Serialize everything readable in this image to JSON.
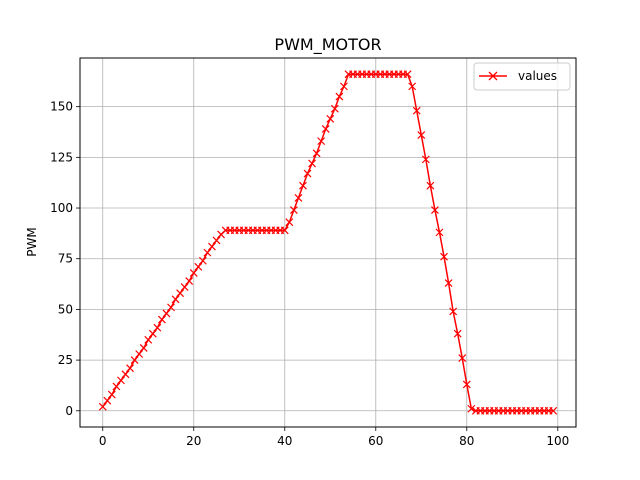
{
  "chart_data": {
    "type": "line",
    "title": "PWM_MOTOR",
    "xlabel": "",
    "ylabel": "PWM",
    "xlim": [
      -5,
      104
    ],
    "ylim": [
      -8,
      174
    ],
    "xticks": [
      0,
      20,
      40,
      60,
      80,
      100
    ],
    "yticks": [
      0,
      25,
      50,
      75,
      100,
      125,
      150
    ],
    "grid": true,
    "legend_position": "top-right",
    "series": [
      {
        "name": "values",
        "color": "#ff0000",
        "marker": "x",
        "x": [
          0,
          1,
          2,
          3,
          4,
          5,
          6,
          7,
          8,
          9,
          10,
          11,
          12,
          13,
          14,
          15,
          16,
          17,
          18,
          19,
          20,
          21,
          22,
          23,
          24,
          25,
          26,
          27,
          28,
          29,
          30,
          31,
          32,
          33,
          34,
          35,
          36,
          37,
          38,
          39,
          40,
          41,
          42,
          43,
          44,
          45,
          46,
          47,
          48,
          49,
          50,
          51,
          52,
          53,
          54,
          55,
          56,
          57,
          58,
          59,
          60,
          61,
          62,
          63,
          64,
          65,
          66,
          67,
          68,
          69,
          70,
          71,
          72,
          73,
          74,
          75,
          76,
          77,
          78,
          79,
          80,
          81,
          82,
          83,
          84,
          85,
          86,
          87,
          88,
          89,
          90,
          91,
          92,
          93,
          94,
          95,
          96,
          97,
          98,
          99
        ],
        "y": [
          2,
          5,
          8,
          12,
          15,
          18,
          21,
          25,
          28,
          31,
          35,
          38,
          41,
          45,
          48,
          51,
          55,
          58,
          61,
          64,
          68,
          71,
          74,
          78,
          81,
          84,
          87,
          89,
          89,
          89,
          89,
          89,
          89,
          89,
          89,
          89,
          89,
          89,
          89,
          89,
          89,
          93,
          99,
          105,
          111,
          117,
          122,
          127,
          133,
          139,
          144,
          149,
          155,
          160,
          166,
          166,
          166,
          166,
          166,
          166,
          166,
          166,
          166,
          166,
          166,
          166,
          166,
          166,
          160,
          148,
          136,
          124,
          111,
          99,
          88,
          76,
          63,
          49,
          38,
          26,
          13,
          1,
          0,
          0,
          0,
          0,
          0,
          0,
          0,
          0,
          0,
          0,
          0,
          0,
          0,
          0,
          0,
          0,
          0,
          0
        ]
      }
    ]
  }
}
